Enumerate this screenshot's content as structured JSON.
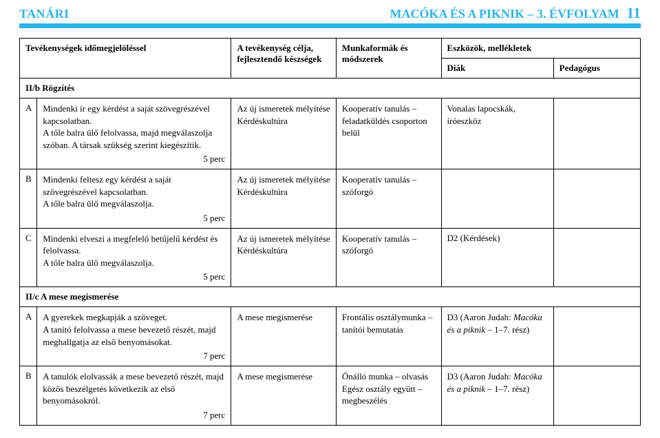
{
  "header": {
    "left": "TANÁRI",
    "right_title": "MACÓKA ÉS A PIKNIK – 3. ÉVFOLYAM",
    "page_number": "11"
  },
  "table_header": {
    "col0": "",
    "col1": "Tevékenységek időmegjelöléssel",
    "col2": "A tevékenység célja, fejlesztendő készségek",
    "col3": "Munkaformák és módszerek",
    "col4_group": "Eszközök, mellékletek",
    "col4": "Diák",
    "col5": "Pedagógus"
  },
  "sections": {
    "sec1": "II/b Rögzítés",
    "sec2": "II/c A mese megismerése"
  },
  "rows": [
    {
      "label": "A",
      "desc": "Mindenki ír egy kérdést a saját szövegrészével kapcsolatban.\nA tőle balra ülő felolvassa, majd megválaszolja szóban. A társak szükség szerint kiegészítik.",
      "duration": "5 perc",
      "goal": "Az új ismeretek mélyítése\nKérdéskultúra",
      "method": "Kooperatív tanulás – feladatküldés csoporton belül",
      "diak": "Vonalas lapocskák, íróeszköz",
      "pedag": ""
    },
    {
      "label": "B",
      "desc": "Mindenki feltesz egy kérdést a saját szövegrészével kapcsolatban.\nA tőle balra ülő megválaszolja.",
      "duration": "5 perc",
      "goal": "Az új ismeretek mélyítése\nKérdéskultúra",
      "method": "Kooperatív tanulás – szóforgó",
      "diak": "",
      "pedag": ""
    },
    {
      "label": "C",
      "desc": "Mindenki elveszi a megfelelő betűjelű kérdést és felolvassa.\nA tőle balra ülő megválaszolja.",
      "duration": "5 perc",
      "goal": "Az új ismeretek mélyítése\nKérdéskultúra",
      "method": "Kooperatív tanulás – szóforgó",
      "diak": "D2 (Kérdések)",
      "pedag": ""
    },
    {
      "label": "A",
      "desc": "A gyerekek megkapják a szöveget.\nA tanító felolvassa a mese bevezető részét, majd meghallgatja az első benyomásokat.",
      "duration": "7 perc",
      "goal": "A mese megismerése",
      "method": "Frontális osztálymunka – tanítói bemutatás",
      "diak_pre": "D3 (Aaron Judah: ",
      "diak_it": "Macóka és a piknik",
      "diak_post": " – 1–7. rész)",
      "pedag": ""
    },
    {
      "label": "B",
      "desc": "A tanulók elolvassák a mese bevezető részét, majd közös beszélgetés következik az első benyomásokról.",
      "duration": "7 perc",
      "goal": "A mese megismerése",
      "method": "Önálló munka – olvasás\nEgész osztály együtt – megbeszélés",
      "diak_pre": "D3 (Aaron Judah: ",
      "diak_it": "Macóka és a piknik",
      "diak_post": " – 1–7. rész)",
      "pedag": ""
    }
  ]
}
